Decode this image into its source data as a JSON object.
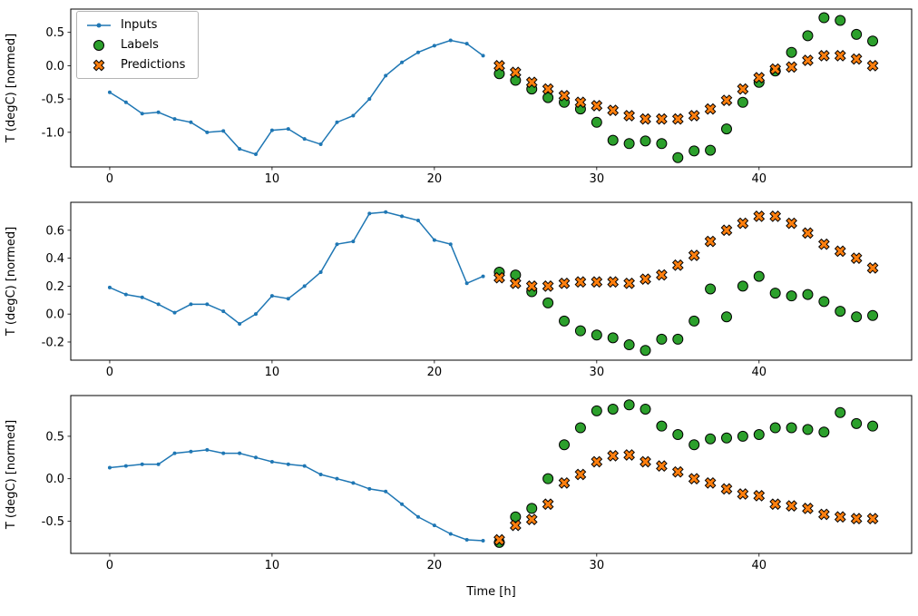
{
  "figure": {
    "xlabel": "Time [h]",
    "ylabel": "T (degC) [normed]",
    "colors": {
      "inputs": "#1f77b4",
      "labels": "#2ca02c",
      "predictions": "#ff7f0e",
      "marker_edge": "#000000"
    },
    "legend": {
      "position": "upper-left-subplot-1",
      "items": [
        {
          "label": "Inputs",
          "marker": "line-dot"
        },
        {
          "label": "Labels",
          "marker": "circle"
        },
        {
          "label": "Predictions",
          "marker": "x"
        }
      ]
    }
  },
  "chart_data": [
    {
      "type": "line",
      "title": "",
      "xlabel": "",
      "ylabel": "T (degC) [normed]",
      "xlim": [
        -2.4,
        49.4
      ],
      "ylim": [
        -1.52,
        0.85
      ],
      "xticks": [
        0,
        10,
        20,
        30,
        40
      ],
      "xtick_labels": [
        "0",
        "10",
        "20",
        "30",
        "40"
      ],
      "yticks": [
        -1.0,
        -0.5,
        0.0,
        0.5
      ],
      "ytick_labels": [
        "-1.0",
        "-0.5",
        "0.0",
        "0.5"
      ],
      "grid": false,
      "series": [
        {
          "name": "Inputs",
          "type": "line",
          "color": "#1f77b4",
          "x": [
            0,
            1,
            2,
            3,
            4,
            5,
            6,
            7,
            8,
            9,
            10,
            11,
            12,
            13,
            14,
            15,
            16,
            17,
            18,
            19,
            20,
            21,
            22,
            23
          ],
          "y": [
            -0.4,
            -0.55,
            -0.72,
            -0.7,
            -0.8,
            -0.85,
            -1.0,
            -0.98,
            -1.25,
            -1.33,
            -0.97,
            -0.95,
            -1.1,
            -1.18,
            -0.85,
            -0.75,
            -0.5,
            -0.15,
            0.05,
            0.2,
            0.3,
            0.38,
            0.33,
            0.15
          ]
        },
        {
          "name": "Labels",
          "type": "scatter-circle",
          "color": "#2ca02c",
          "x": [
            24,
            25,
            26,
            27,
            28,
            29,
            30,
            31,
            32,
            33,
            34,
            35,
            36,
            37,
            38,
            39,
            40,
            41,
            42,
            43,
            44,
            45,
            46,
            47
          ],
          "y": [
            -0.12,
            -0.22,
            -0.35,
            -0.48,
            -0.55,
            -0.65,
            -0.85,
            -1.12,
            -1.17,
            -1.13,
            -1.17,
            -1.38,
            -1.28,
            -1.27,
            -0.95,
            -0.55,
            -0.25,
            -0.08,
            0.2,
            0.45,
            0.72,
            0.68,
            0.47,
            0.37
          ]
        },
        {
          "name": "Predictions",
          "type": "scatter-x",
          "color": "#ff7f0e",
          "x": [
            24,
            25,
            26,
            27,
            28,
            29,
            30,
            31,
            32,
            33,
            34,
            35,
            36,
            37,
            38,
            39,
            40,
            41,
            42,
            43,
            44,
            45,
            46,
            47
          ],
          "y": [
            0.0,
            -0.1,
            -0.25,
            -0.35,
            -0.45,
            -0.55,
            -0.6,
            -0.67,
            -0.75,
            -0.8,
            -0.8,
            -0.8,
            -0.75,
            -0.65,
            -0.52,
            -0.35,
            -0.18,
            -0.05,
            -0.02,
            0.08,
            0.15,
            0.15,
            0.1,
            0.0
          ]
        }
      ]
    },
    {
      "type": "line",
      "title": "",
      "xlabel": "",
      "ylabel": "T (degC) [normed]",
      "xlim": [
        -2.4,
        49.4
      ],
      "ylim": [
        -0.33,
        0.8
      ],
      "xticks": [
        0,
        10,
        20,
        30,
        40
      ],
      "xtick_labels": [
        "0",
        "10",
        "20",
        "30",
        "40"
      ],
      "yticks": [
        -0.2,
        0.0,
        0.2,
        0.4,
        0.6
      ],
      "ytick_labels": [
        "-0.2",
        "0.0",
        "0.2",
        "0.4",
        "0.6"
      ],
      "grid": false,
      "series": [
        {
          "name": "Inputs",
          "type": "line",
          "color": "#1f77b4",
          "x": [
            0,
            1,
            2,
            3,
            4,
            5,
            6,
            7,
            8,
            9,
            10,
            11,
            12,
            13,
            14,
            15,
            16,
            17,
            18,
            19,
            20,
            21,
            22,
            23
          ],
          "y": [
            0.19,
            0.14,
            0.12,
            0.07,
            0.01,
            0.07,
            0.07,
            0.02,
            -0.07,
            0.0,
            0.13,
            0.11,
            0.2,
            0.3,
            0.5,
            0.52,
            0.72,
            0.73,
            0.7,
            0.67,
            0.53,
            0.5,
            0.22,
            0.27
          ]
        },
        {
          "name": "Labels",
          "type": "scatter-circle",
          "color": "#2ca02c",
          "x": [
            24,
            25,
            26,
            27,
            28,
            29,
            30,
            31,
            32,
            33,
            34,
            35,
            36,
            37,
            38,
            39,
            40,
            41,
            42,
            43,
            44,
            45,
            46,
            47
          ],
          "y": [
            0.3,
            0.28,
            0.16,
            0.08,
            -0.05,
            -0.12,
            -0.15,
            -0.17,
            -0.22,
            -0.26,
            -0.18,
            -0.18,
            -0.05,
            0.18,
            -0.02,
            0.2,
            0.27,
            0.15,
            0.13,
            0.14,
            0.09,
            0.02,
            -0.02,
            -0.01
          ]
        },
        {
          "name": "Predictions",
          "type": "scatter-x",
          "color": "#ff7f0e",
          "x": [
            24,
            25,
            26,
            27,
            28,
            29,
            30,
            31,
            32,
            33,
            34,
            35,
            36,
            37,
            38,
            39,
            40,
            41,
            42,
            43,
            44,
            45,
            46,
            47
          ],
          "y": [
            0.26,
            0.22,
            0.2,
            0.2,
            0.22,
            0.23,
            0.23,
            0.23,
            0.22,
            0.25,
            0.28,
            0.35,
            0.42,
            0.52,
            0.6,
            0.65,
            0.7,
            0.7,
            0.65,
            0.58,
            0.5,
            0.45,
            0.4,
            0.33
          ]
        }
      ]
    },
    {
      "type": "line",
      "title": "",
      "xlabel": "Time [h]",
      "ylabel": "T (degC) [normed]",
      "xlim": [
        -2.4,
        49.4
      ],
      "ylim": [
        -0.88,
        0.98
      ],
      "xticks": [
        0,
        10,
        20,
        30,
        40
      ],
      "xtick_labels": [
        "0",
        "10",
        "20",
        "30",
        "40"
      ],
      "yticks": [
        -0.5,
        0.0,
        0.5
      ],
      "ytick_labels": [
        "-0.5",
        "0.0",
        "0.5"
      ],
      "grid": false,
      "series": [
        {
          "name": "Inputs",
          "type": "line",
          "color": "#1f77b4",
          "x": [
            0,
            1,
            2,
            3,
            4,
            5,
            6,
            7,
            8,
            9,
            10,
            11,
            12,
            13,
            14,
            15,
            16,
            17,
            18,
            19,
            20,
            21,
            22,
            23
          ],
          "y": [
            0.13,
            0.15,
            0.17,
            0.17,
            0.3,
            0.32,
            0.34,
            0.3,
            0.3,
            0.25,
            0.2,
            0.17,
            0.15,
            0.05,
            0.0,
            -0.05,
            -0.12,
            -0.15,
            -0.3,
            -0.45,
            -0.55,
            -0.65,
            -0.72,
            -0.73
          ]
        },
        {
          "name": "Labels",
          "type": "scatter-circle",
          "color": "#2ca02c",
          "x": [
            24,
            25,
            26,
            27,
            28,
            29,
            30,
            31,
            32,
            33,
            34,
            35,
            36,
            37,
            38,
            39,
            40,
            41,
            42,
            43,
            44,
            45,
            46,
            47
          ],
          "y": [
            -0.75,
            -0.45,
            -0.35,
            0.0,
            0.4,
            0.6,
            0.8,
            0.82,
            0.87,
            0.82,
            0.62,
            0.52,
            0.4,
            0.47,
            0.48,
            0.5,
            0.52,
            0.6,
            0.6,
            0.58,
            0.55,
            0.78,
            0.65,
            0.62
          ]
        },
        {
          "name": "Predictions",
          "type": "scatter-x",
          "color": "#ff7f0e",
          "x": [
            24,
            25,
            26,
            27,
            28,
            29,
            30,
            31,
            32,
            33,
            34,
            35,
            36,
            37,
            38,
            39,
            40,
            41,
            42,
            43,
            44,
            45,
            46,
            47
          ],
          "y": [
            -0.72,
            -0.55,
            -0.48,
            -0.3,
            -0.05,
            0.05,
            0.2,
            0.27,
            0.28,
            0.2,
            0.15,
            0.08,
            0.0,
            -0.05,
            -0.12,
            -0.18,
            -0.2,
            -0.3,
            -0.32,
            -0.35,
            -0.42,
            -0.45,
            -0.47,
            -0.47
          ]
        }
      ]
    }
  ]
}
